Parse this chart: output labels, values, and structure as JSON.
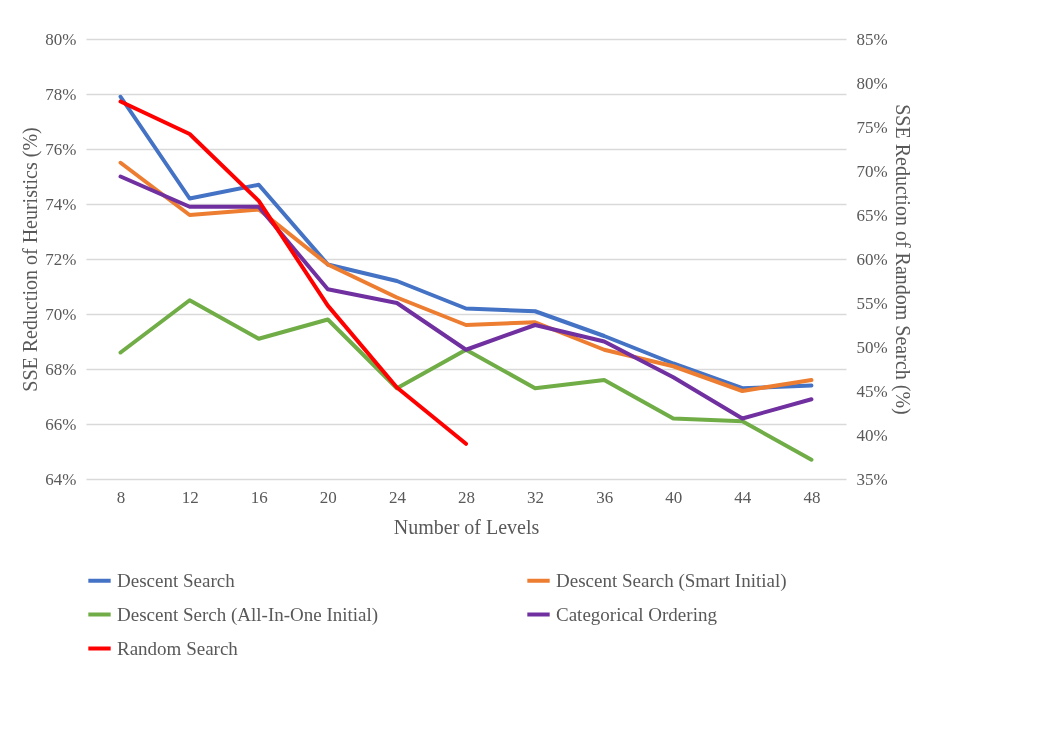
{
  "chart_data": {
    "type": "line",
    "xlabel": "Number of Levels",
    "ylabel": "SSE Reduction of Heuristics (%)",
    "y2label": "SSE Reduction of Random Search (%)",
    "categories": [
      "8",
      "12",
      "16",
      "20",
      "24",
      "28",
      "32",
      "36",
      "40",
      "44",
      "48"
    ],
    "series": [
      {
        "name": "Descent Search",
        "color": "#4472c4",
        "values": [
          77.9,
          74.2,
          74.7,
          71.8,
          71.2,
          70.2,
          70.1,
          69.2,
          68.2,
          67.3,
          67.4
        ]
      },
      {
        "name": "Descent Search (Smart Initial)",
        "color": "#ed7d31",
        "values": [
          75.5,
          73.6,
          73.8,
          71.8,
          70.6,
          69.6,
          69.7,
          68.7,
          68.1,
          67.2,
          67.6
        ]
      },
      {
        "name": "Descent Serch (All-In-One Initial)",
        "color": "#70ad47",
        "values": [
          68.6,
          70.5,
          69.1,
          69.8,
          67.3,
          68.7,
          67.3,
          67.6,
          66.2,
          66.1,
          64.7
        ]
      },
      {
        "name": "Categorical Ordering",
        "color": "#7030a0",
        "values": [
          75.0,
          73.9,
          73.9,
          70.9,
          70.4,
          68.7,
          69.6,
          69.0,
          67.7,
          66.2,
          66.9
        ]
      },
      {
        "name": "Random Search",
        "color": "#ff0000",
        "axis": "y2",
        "values": [
          77.9,
          74.2,
          66.6,
          54.7,
          45.4,
          39.0,
          null,
          null,
          null,
          null,
          null
        ]
      }
    ],
    "ylim": [
      64,
      80
    ],
    "yticks": [
      {
        "value": 64,
        "label": "64%"
      },
      {
        "value": 66,
        "label": "66%"
      },
      {
        "value": 68,
        "label": "68%"
      },
      {
        "value": 70,
        "label": "70%"
      },
      {
        "value": 72,
        "label": "72%"
      },
      {
        "value": 74,
        "label": "74%"
      },
      {
        "value": 76,
        "label": "76%"
      },
      {
        "value": 78,
        "label": "78%"
      },
      {
        "value": 80,
        "label": "80%"
      }
    ],
    "y2lim": [
      35,
      85
    ],
    "y2ticks": [
      {
        "value": 35,
        "label": "35%"
      },
      {
        "value": 40,
        "label": "40%"
      },
      {
        "value": 45,
        "label": "45%"
      },
      {
        "value": 50,
        "label": "50%"
      },
      {
        "value": 55,
        "label": "55%"
      },
      {
        "value": 60,
        "label": "60%"
      },
      {
        "value": 65,
        "label": "65%"
      },
      {
        "value": 70,
        "label": "70%"
      },
      {
        "value": 75,
        "label": "75%"
      },
      {
        "value": 80,
        "label": "80%"
      },
      {
        "value": 85,
        "label": "85%"
      }
    ],
    "grid": "y",
    "legend": "bottom",
    "marker": "none",
    "line_style": "solid"
  }
}
